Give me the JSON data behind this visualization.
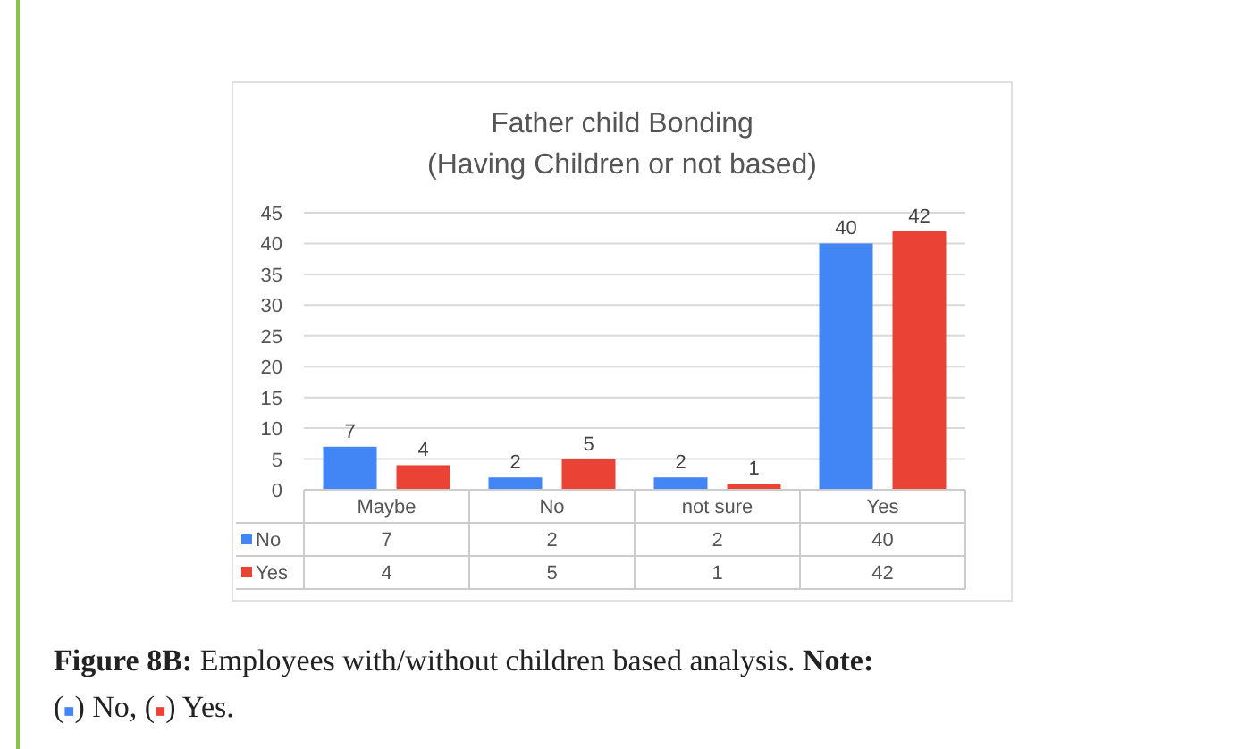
{
  "chart_data": {
    "type": "bar",
    "title": "Father child Bonding\n(Having Children or not based)",
    "categories": [
      "Maybe",
      "No",
      "not sure",
      "Yes"
    ],
    "series": [
      {
        "name": "No",
        "color": "#4285f4",
        "values": [
          7,
          2,
          2,
          40
        ]
      },
      {
        "name": "Yes",
        "color": "#ea4335",
        "values": [
          4,
          5,
          1,
          42
        ]
      }
    ],
    "ylim": [
      0,
      45
    ],
    "yticks": [
      0,
      5,
      10,
      15,
      20,
      25,
      30,
      35,
      40,
      45
    ],
    "grid": "y",
    "data_labels": true,
    "legend": "bottom left",
    "annotations": [
      "Figure 8B:",
      "Employees with/without children based analysis.",
      "Note:",
      "(■) No, (■) Yes.",
      "7",
      "2",
      "2",
      "40",
      "4",
      "5",
      "1",
      "42"
    ]
  }
}
